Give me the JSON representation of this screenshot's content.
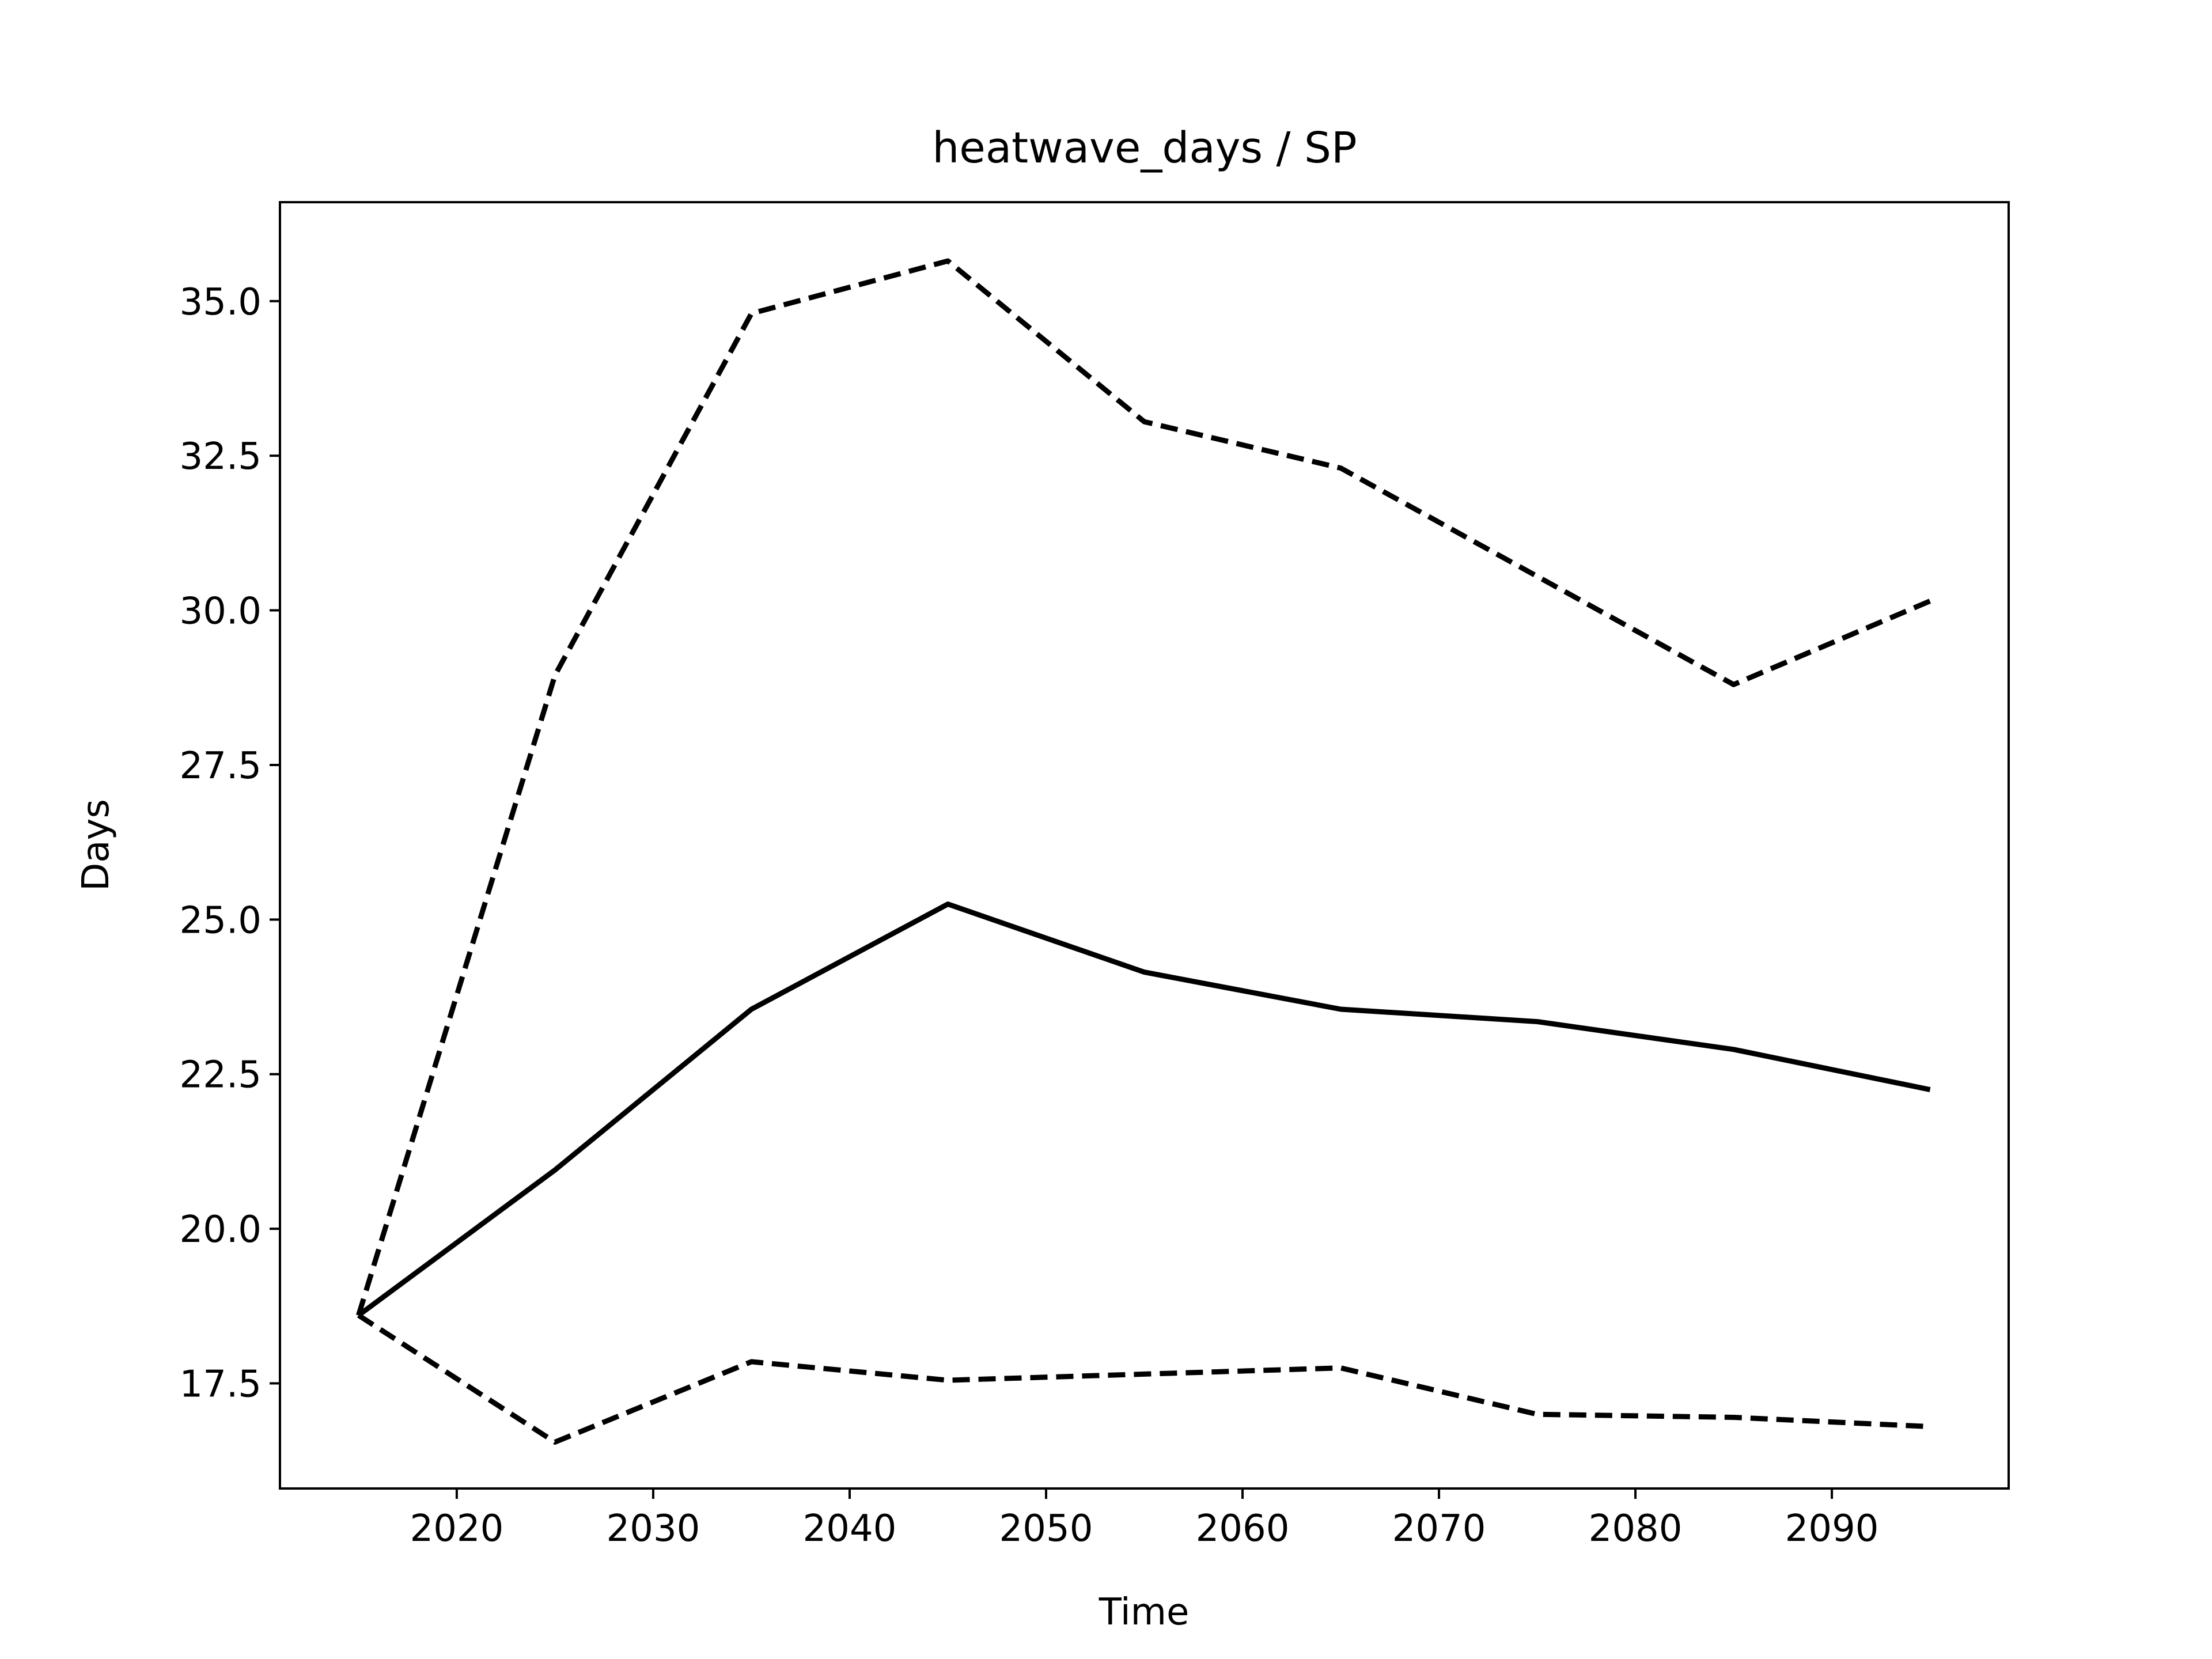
{
  "chart_data": {
    "type": "line",
    "title": "heatwave_days / SP",
    "xlabel": "Time",
    "ylabel": "Days",
    "xlim": [
      2011,
      2099
    ],
    "ylim": [
      15.8,
      36.6
    ],
    "grid": false,
    "x_ticks": [
      2020,
      2030,
      2040,
      2050,
      2060,
      2070,
      2080,
      2090
    ],
    "x_tick_labels": [
      "2020",
      "2030",
      "2040",
      "2050",
      "2060",
      "2070",
      "2080",
      "2090"
    ],
    "y_ticks": [
      17.5,
      20.0,
      22.5,
      25.0,
      27.5,
      30.0,
      32.5,
      35.0
    ],
    "y_tick_labels": [
      "17.5",
      "20.0",
      "22.5",
      "25.0",
      "27.5",
      "30.0",
      "32.5",
      "35.0"
    ],
    "x": [
      2015,
      2025,
      2035,
      2045,
      2055,
      2065,
      2075,
      2085,
      2095
    ],
    "series": [
      {
        "style": "solid",
        "color": "#000000",
        "values": [
          18.6,
          20.95,
          23.55,
          25.25,
          24.15,
          23.55,
          23.35,
          22.9,
          22.25
        ]
      },
      {
        "style": "dashed",
        "color": "#000000",
        "values": [
          18.6,
          28.95,
          34.8,
          35.65,
          33.05,
          32.3,
          30.55,
          28.8,
          30.15
        ]
      },
      {
        "style": "dashed",
        "color": "#000000",
        "values": [
          18.6,
          16.55,
          17.85,
          17.55,
          17.65,
          17.75,
          17.0,
          16.95,
          16.8
        ]
      }
    ]
  }
}
